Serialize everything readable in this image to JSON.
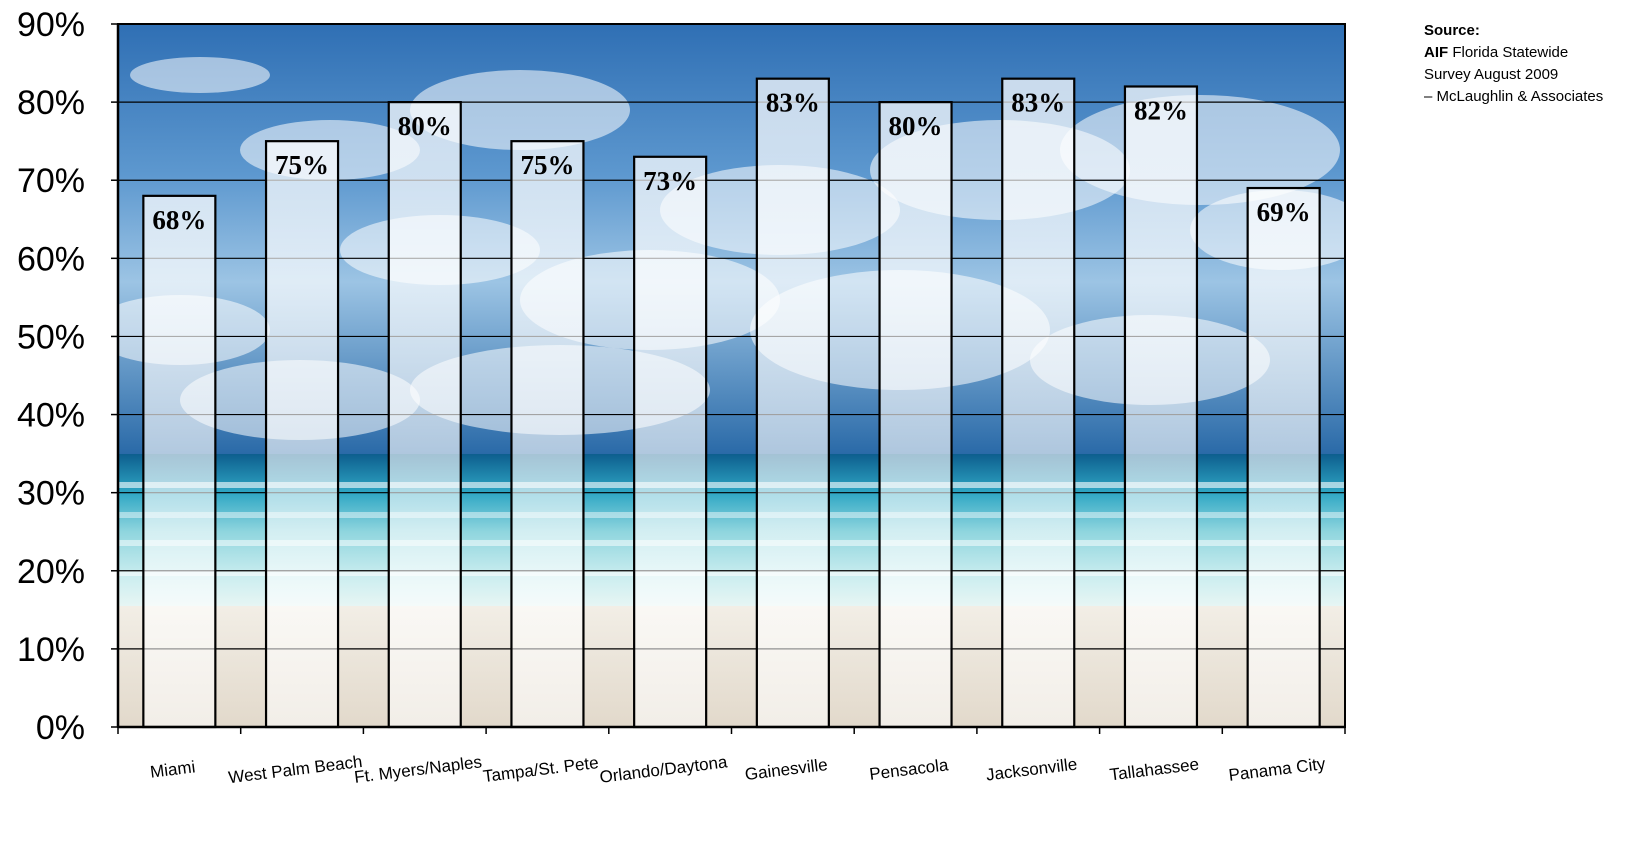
{
  "chart_data": {
    "type": "bar",
    "categories": [
      "Miami",
      "West Palm Beach",
      "Ft. Myers/Naples",
      "Tampa/St. Pete",
      "Orlando/Daytona",
      "Gainesville",
      "Pensacola",
      "Jacksonville",
      "Tallahassee",
      "Panama City"
    ],
    "values": [
      68,
      75,
      80,
      75,
      73,
      83,
      80,
      83,
      82,
      69
    ],
    "data_labels": [
      "68%",
      "75%",
      "80%",
      "75%",
      "73%",
      "83%",
      "80%",
      "83%",
      "82%",
      "69%"
    ],
    "yticks": [
      "0%",
      "10%",
      "20%",
      "30%",
      "40%",
      "50%",
      "60%",
      "70%",
      "80%",
      "90%"
    ],
    "ylim": [
      0,
      90
    ],
    "grid": true,
    "legend": "none",
    "background": "beach photo (sky, clouds, ocean, sand)",
    "colors": {
      "bar_fill": "#ffffff",
      "bar_border": "#000000",
      "grid": "#000000"
    }
  },
  "source": {
    "heading": "Source:",
    "org": "AIF",
    "line1_rest": " Florida Statewide",
    "line2": "Survey August 2009",
    "line3": "– McLaughlin & Associates"
  }
}
